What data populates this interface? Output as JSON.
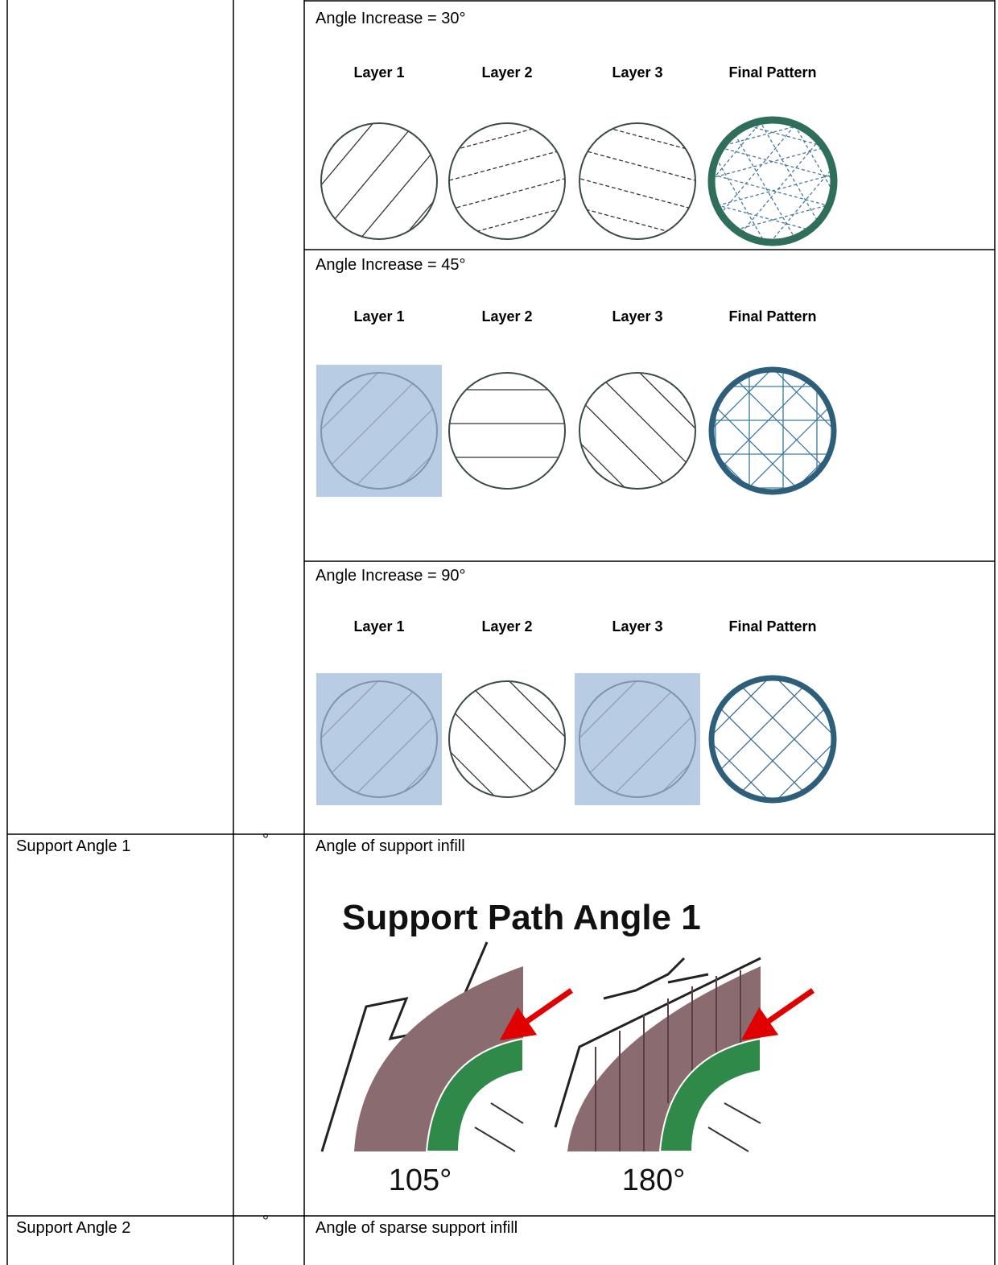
{
  "angle_sections": [
    {
      "heading": "Angle Increase = 30°",
      "layers": [
        "Layer 1",
        "Layer 2",
        "Layer 3",
        "Final Pattern"
      ]
    },
    {
      "heading": "Angle Increase = 45°",
      "layers": [
        "Layer 1",
        "Layer 2",
        "Layer 3",
        "Final Pattern"
      ]
    },
    {
      "heading": "Angle Increase = 90°",
      "layers": [
        "Layer 1",
        "Layer 2",
        "Layer 3",
        "Final Pattern"
      ]
    }
  ],
  "rows": [
    {
      "name": "Support Angle 1",
      "unit": "°",
      "description": "Angle of support infill",
      "figure": {
        "title": "Support Path Angle 1",
        "labels": [
          "105°",
          "180°"
        ]
      }
    },
    {
      "name": "Support Angle 2",
      "unit": "°",
      "description": "Angle of sparse support infill"
    }
  ]
}
